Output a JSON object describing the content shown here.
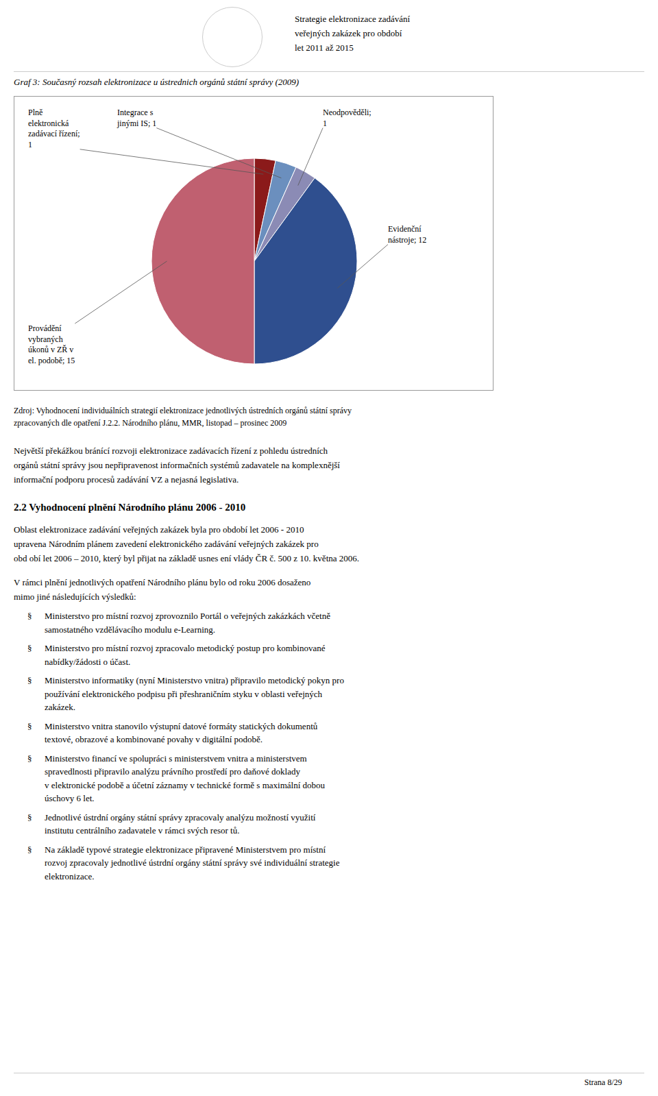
{
  "page": {
    "header": "Strategie elektronizace zadávání\nveřejných zakázek pro období\nlet 2011 až 2015",
    "source": "Zdroj: Vyhodnocení individuálních strategií elektronizace jednotlivých ústredních orgánů státní správy\nzpracovaných dle opatření J.2.2. Národního plánu, MMR, listopad – prosinec 2009",
    "paragraphs_before": [
      "Největší překážkou bránící rozvoji elektronizace zadávacích řízení z pohledu ústredních\norgánů státní správy jsou nepřipravenost informačních systémů zadavatele na komplexnější\ninformační podporu procesů zadávání VZ a nejasná legislativa."
    ],
    "section_title": "2.2  Vyhodnocení plnění Národního plánu 2006 - 2010",
    "paragraphs_after": [
      "Oblast elektronizace zadávání veřejných zakázek byla pro období let 2006 - 2010\nupravena Národním plánem zavedení elektronického zadávání veřejných zakázek pro\nobd obí let 2006 – 2010, který byl přijat na základě usnes ení vlády ČR č. 500 z 10. května 2006.",
      "V rámci plnění jednotlivých opatření Národního plánu bylo od roku 2006 dosaženo\nmimo jiné následujících výsledků:"
    ],
    "bullet_symbol": "§",
    "bullets": [
      "Ministerstvo pro místní rozvoj zprovoznilo Portál o veřejných zakázkách včetně\nsamostatného vzdělávacího modulu e-Learning.",
      "Ministerstvo pro místní rozvoj zpracovalo metodický postup pro kombinované\nnabídky/žádosti o účast.",
      "Ministerstvo informatiky (nyní Ministerstvo vnitra) připravilo metodický pokyn pro\npoužívání elektronického podpisu při přeshraničním styku v oblasti veřejných\nzakázek.",
      "Ministerstvo vnitra stanovilo výstupní datové formáty statických dokumentů\ntextové, obrazové a kombinované povahy v digitální podobě.",
      "Ministerstvo financí ve spolupráci s ministerstvem vnitra a ministerstvem\nspravedlnosti připravilo analýzu právního prostředí pro daňové doklady\nv elektronické podobě a účetní záznamy v technické formě s maximální dobou\núschovy 6 let.",
      "Jednotlivé ústrdní orgány státní správy zpracovaly analýzu možností využití\ninstitutu centrálního zadavatele v rámci svých resor tů.",
      "Na základě typové strategie elektronizace připravené Ministerstvem pro místní\nrozvoj zpracovaly jednotlivé ústrdní orgány státní správy své individuální strategie\nelektronizace."
    ],
    "footer": "Strana 8/29"
  },
  "chart_data": {
    "type": "pie",
    "title": "Graf 3: Současný rozsah elektronizace u ústrednich orgánů státní správy (2009)",
    "categories": [
      "Plně\nelektronická\nzadávací řízení;\n1",
      "Integrace s\njinými IS; 1",
      "Neodpověděli;\n1",
      "Evidenční\nnástroje; 12",
      "Provádění\nvybraných\núkonů v ZŘ v\nel. podobě; 15"
    ],
    "values": [
      1,
      1,
      1,
      12,
      15
    ],
    "colors": [
      "#8B1A1A",
      "#6B8FBE",
      "#8B8BB5",
      "#2F4F8F",
      "#C06070"
    ]
  }
}
